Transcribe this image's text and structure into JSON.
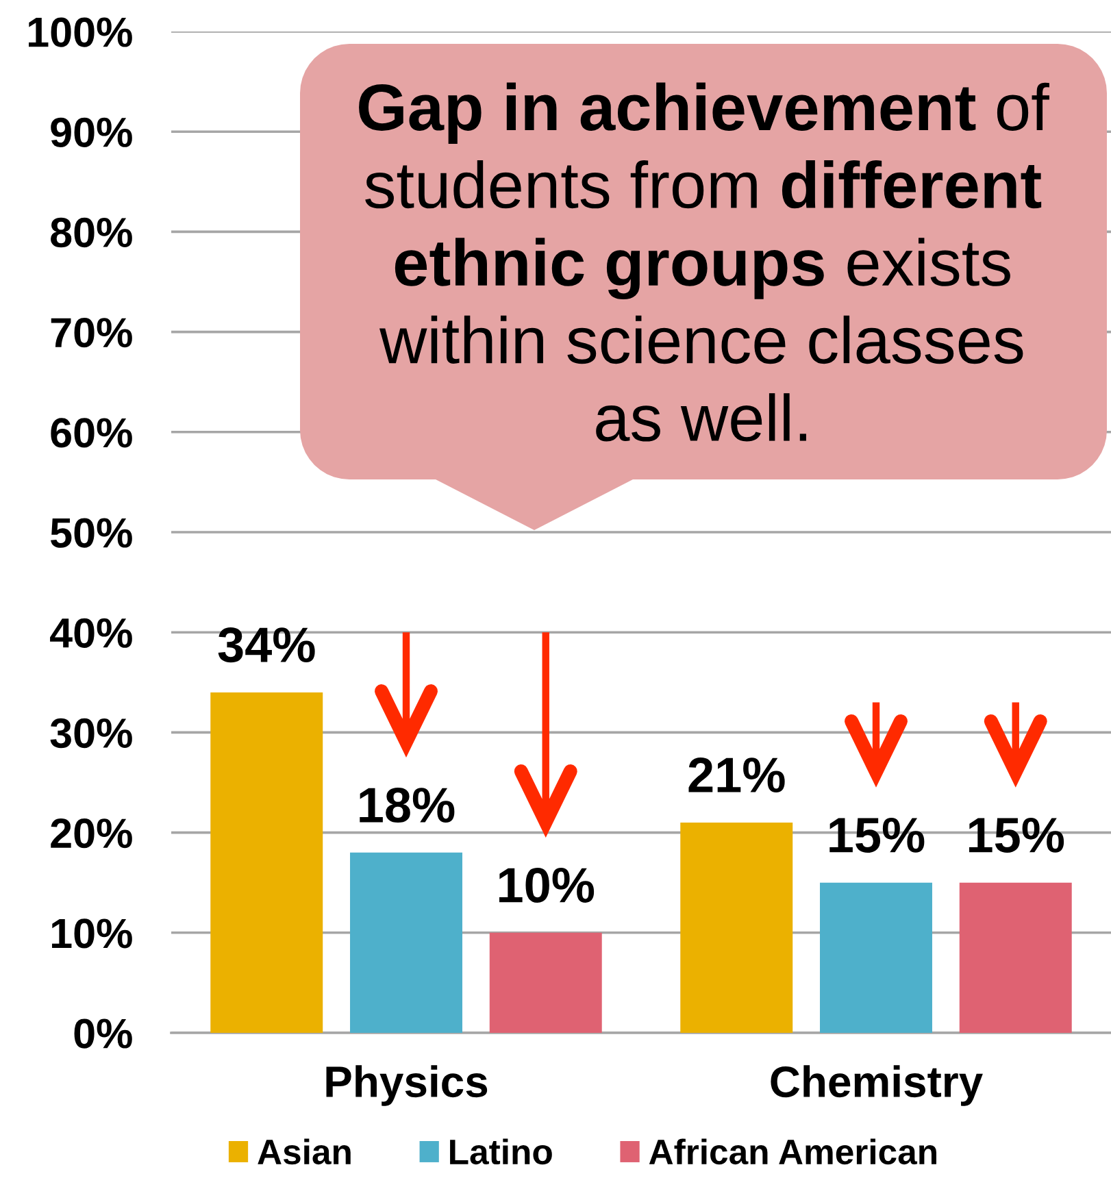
{
  "chart_data": {
    "type": "bar",
    "categories": [
      "Physics",
      "Chemistry"
    ],
    "series": [
      {
        "name": "Asian",
        "color": "#ebb100",
        "values": [
          34,
          21
        ],
        "value_labels": [
          "34%",
          "21%"
        ]
      },
      {
        "name": "Latino",
        "color": "#4eb0cb",
        "values": [
          18,
          15
        ],
        "value_labels": [
          "18%",
          "15%"
        ]
      },
      {
        "name": "African American",
        "color": "#df6272",
        "values": [
          10,
          15
        ],
        "value_labels": [
          "10%",
          "15%"
        ]
      }
    ],
    "ylim": [
      0,
      100
    ],
    "yticks": [
      {
        "value": 0,
        "label": "0%"
      },
      {
        "value": 10,
        "label": "10%"
      },
      {
        "value": 20,
        "label": "20%"
      },
      {
        "value": 30,
        "label": "30%"
      },
      {
        "value": 40,
        "label": "40%"
      },
      {
        "value": 50,
        "label": "50%"
      },
      {
        "value": 60,
        "label": "60%"
      },
      {
        "value": 70,
        "label": "70%"
      },
      {
        "value": 80,
        "label": "80%"
      },
      {
        "value": 90,
        "label": "90%"
      },
      {
        "value": 100,
        "label": "100%"
      }
    ],
    "grid": "y",
    "legend": "bottom",
    "annotations": [
      "Gap in achievement of students from different ethnic groups exists within science classes as well."
    ]
  }
}
